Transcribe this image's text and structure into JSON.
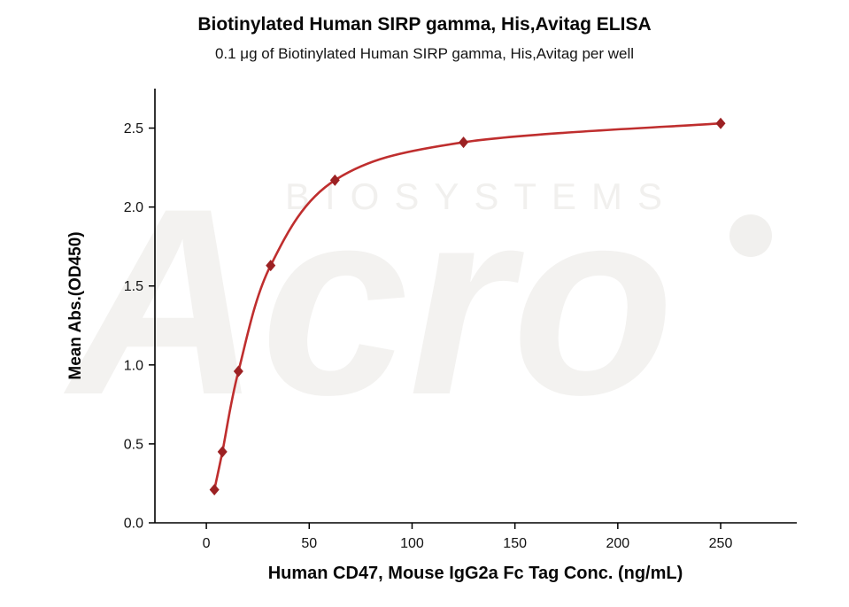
{
  "watermark": {
    "brand": "Acro",
    "tagline": "BIOSYSTEMS"
  },
  "chart_data": {
    "type": "line",
    "title": "Biotinylated Human SIRP gamma, His,Avitag ELISA",
    "subtitle": "0.1 μg of Biotinylated Human SIRP gamma, His,Avitag per well",
    "xlabel": "Human CD47, Mouse IgG2a Fc Tag Conc. (ng/mL)",
    "ylabel": "Mean Abs.(OD450)",
    "x": [
      3.9,
      7.8,
      15.6,
      31.25,
      62.5,
      125,
      250
    ],
    "y": [
      0.21,
      0.45,
      0.96,
      1.63,
      2.17,
      2.41,
      2.53
    ],
    "xlim": [
      -25,
      287
    ],
    "ylim": [
      0,
      2.75
    ],
    "xticks": [
      0,
      50,
      100,
      150,
      200,
      250
    ],
    "yticks": [
      0,
      0.5,
      1.0,
      1.5,
      2.0,
      2.5
    ],
    "grid": false,
    "legend": null,
    "axis_color": "#000000",
    "line_color": "#bf2e2e",
    "marker_color": "#9c2123",
    "marker": "diamond"
  }
}
